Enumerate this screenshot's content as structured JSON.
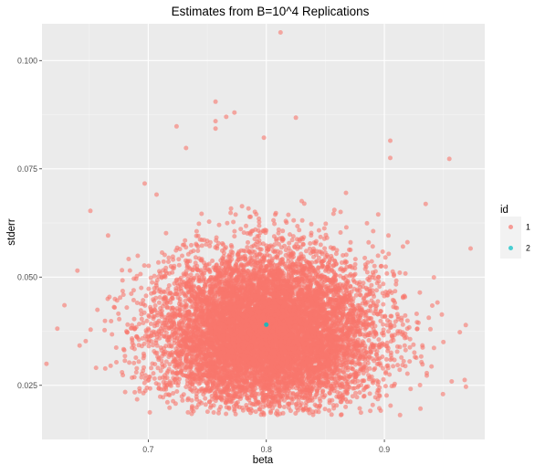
{
  "chart_data": {
    "type": "scatter",
    "title": "Estimates from B=10^4 Replications",
    "xlabel": "beta",
    "ylabel": "stderr",
    "xlim": [
      0.61,
      0.985
    ],
    "ylim": [
      0.0125,
      0.1085
    ],
    "x_ticks": [
      0.7,
      0.8,
      0.9
    ],
    "x_tick_labels": [
      "0.7",
      "0.8",
      "0.9"
    ],
    "y_ticks": [
      0.025,
      0.05,
      0.075,
      0.1
    ],
    "y_tick_labels": [
      "0.025",
      "0.050",
      "0.075",
      "0.100"
    ],
    "grid": true,
    "legend_position": "right",
    "legend_title": "id",
    "series": [
      {
        "name": "1",
        "color": "#F8766D",
        "n_points": 10000,
        "center": [
          0.8,
          0.037
        ],
        "spread": [
          0.045,
          0.008
        ],
        "notable_points": [
          [
            0.812,
            0.1065
          ],
          [
            0.757,
            0.0905
          ],
          [
            0.773,
            0.088
          ],
          [
            0.757,
            0.086
          ],
          [
            0.766,
            0.087
          ],
          [
            0.825,
            0.0868
          ],
          [
            0.724,
            0.0848
          ],
          [
            0.757,
            0.0843
          ],
          [
            0.798,
            0.0822
          ],
          [
            0.732,
            0.0798
          ],
          [
            0.905,
            0.0815
          ],
          [
            0.905,
            0.0775
          ],
          [
            0.955,
            0.0773
          ],
          [
            0.697,
            0.0716
          ],
          [
            0.935,
            0.0669
          ],
          [
            0.651,
            0.0653
          ],
          [
            0.973,
            0.0566
          ],
          [
            0.64,
            0.0515
          ],
          [
            0.623,
            0.0381
          ],
          [
            0.629,
            0.0435
          ],
          [
            0.647,
            0.0352
          ],
          [
            0.957,
            0.0259
          ],
          [
            0.95,
            0.035
          ],
          [
            0.798,
            0.0182
          ]
        ]
      },
      {
        "name": "2",
        "color": "#00BFC4",
        "points": [
          [
            0.8,
            0.039
          ]
        ]
      }
    ]
  }
}
